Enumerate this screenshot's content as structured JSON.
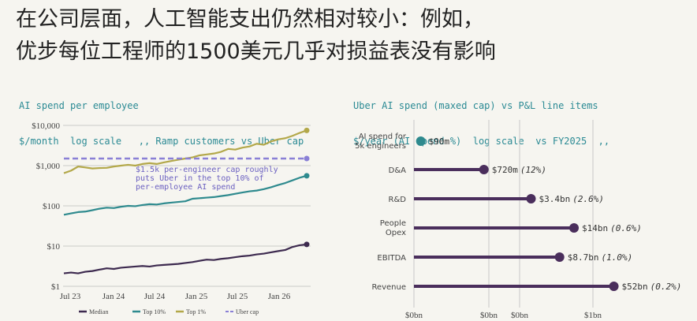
{
  "headline": {
    "line1": "在公司层面，人工智能支出仍然相对较小：例如，",
    "line2": "优步每位工程师的1500美元几乎对损益表没有影响"
  },
  "colors": {
    "median": "#3d2a4f",
    "top10": "#2e8a8e",
    "top1": "#b3a84a",
    "cap": "#8a80d6",
    "lollipop": "#4a2e5c",
    "teal_text": "#2b8a94"
  },
  "chart_data": [
    {
      "type": "line",
      "subtitle_line1": "AI spend per employee",
      "subtitle_line2": "$/month  log scale   ,, Ramp customers vs Uber cap",
      "y_scale": "log",
      "ylim": [
        1,
        10000
      ],
      "y_ticks": [
        "$1",
        "$10",
        "$100",
        "$1,000",
        "$10,000"
      ],
      "x_ticks": [
        "Jul 23",
        "Jan 24",
        "Jul 24",
        "Jan 25",
        "Jul 25",
        "Jan 26"
      ],
      "x_range": [
        "2023-07",
        "2026-04"
      ],
      "annotation": "$1.5k per-engineer cap roughly\nputs Uber in the top 10% of\nper-employee AI spend",
      "legend": [
        "Median",
        "Top 10%",
        "Top 1%",
        "Uber cap"
      ],
      "series": [
        {
          "name": "Median",
          "values": [
            2.1,
            2.2,
            2.1,
            2.3,
            2.4,
            2.6,
            2.8,
            2.7,
            2.9,
            3.0,
            3.1,
            3.2,
            3.1,
            3.3,
            3.4,
            3.5,
            3.6,
            3.8,
            4.0,
            4.3,
            4.6,
            4.5,
            4.8,
            5.0,
            5.3,
            5.6,
            5.8,
            6.2,
            6.5,
            7.0,
            7.5,
            8.0,
            9.5,
            10.5,
            11.0
          ]
        },
        {
          "name": "Top 10%",
          "values": [
            60,
            65,
            70,
            72,
            78,
            85,
            90,
            88,
            95,
            100,
            98,
            105,
            110,
            108,
            115,
            120,
            125,
            130,
            150,
            155,
            160,
            165,
            175,
            185,
            200,
            215,
            230,
            240,
            260,
            290,
            330,
            370,
            430,
            500,
            560
          ]
        },
        {
          "name": "Top 1%",
          "values": [
            650,
            750,
            950,
            900,
            850,
            870,
            880,
            950,
            1000,
            1050,
            1000,
            1100,
            1150,
            1100,
            1200,
            1300,
            1400,
            1500,
            1600,
            1800,
            1900,
            2000,
            2200,
            2600,
            2500,
            2800,
            3000,
            3500,
            3300,
            4000,
            4500,
            4800,
            5500,
            6500,
            7500
          ]
        },
        {
          "name": "Uber cap",
          "values": [
            1500,
            1500
          ]
        }
      ]
    },
    {
      "type": "bar",
      "subtitle_line1": "Uber AI spend (maxed cap) vs P&L line items",
      "subtitle_line2": "$/year (AI spend %)  log scale  vs FY2025  ,,",
      "categories": [
        "AI spend for\n5k engineers",
        "D&A",
        "R&D",
        "People\nOpex",
        "EBITDA",
        "Revenue"
      ],
      "values_usd": [
        90000000,
        720000000,
        3400000000,
        14000000000,
        8700000000,
        52000000000
      ],
      "value_labels": [
        "$90m",
        "$720m",
        "$3.4bn",
        "$14bn",
        "$8.7bn",
        "$52bn"
      ],
      "pct_labels": [
        "",
        "(12%)",
        "(2.6%)",
        "(0.6%)",
        "(1.0%)",
        "(0.2%)"
      ],
      "x_ticks": [
        "$0bn",
        "$0bn",
        "$0bn",
        "$1bn"
      ],
      "x_scale": "log"
    }
  ]
}
